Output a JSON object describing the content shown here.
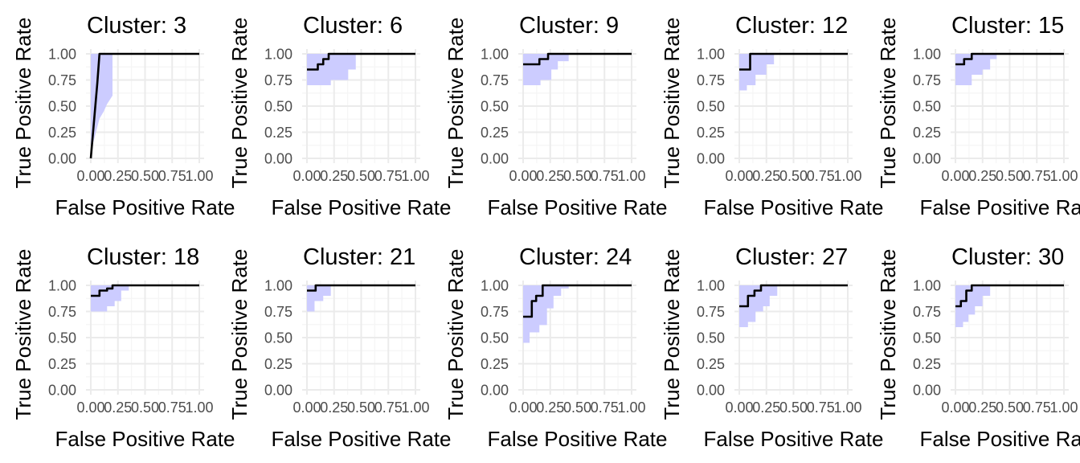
{
  "colors": {
    "band_fill": "#ccccff",
    "line": "#000000",
    "grid_major": "#ebebeb",
    "grid_minor": "#f5f5f5",
    "tick_text": "#4d4d4d"
  },
  "chart_data": [
    {
      "type": "line",
      "title": "Cluster:  3",
      "xlabel": "False Positive Rate",
      "ylabel": "True Positive Rate",
      "xlim": [
        0,
        1
      ],
      "ylim": [
        0,
        1
      ],
      "xticks": [
        "0.00",
        "0.25",
        "0.50",
        "0.75",
        "1.00"
      ],
      "yticks": [
        "0.00",
        "0.25",
        "0.50",
        "0.75",
        "1.00"
      ],
      "grid": true,
      "series": [
        {
          "x": [
            0,
            0.06,
            0.08,
            1
          ],
          "y": [
            0,
            0.72,
            1,
            1
          ]
        }
      ],
      "band": {
        "x": [
          0,
          0.02,
          0.06,
          0.08,
          0.12,
          0.15,
          0.2
        ],
        "lower": [
          0,
          0.14,
          0.3,
          0.38,
          0.45,
          0.52,
          0.6
        ],
        "upper": [
          1,
          1,
          1,
          1,
          1,
          1,
          1
        ]
      }
    },
    {
      "type": "line",
      "title": "Cluster:  6",
      "xlabel": "False Positive Rate",
      "ylabel": "True Positive Rate",
      "xlim": [
        0,
        1
      ],
      "ylim": [
        0,
        1
      ],
      "xticks": [
        "0.00",
        "0.25",
        "0.50",
        "0.75",
        "1.00"
      ],
      "yticks": [
        "0.00",
        "0.25",
        "0.50",
        "0.75",
        "1.00"
      ],
      "grid": true,
      "series": [
        {
          "x": [
            0,
            0.1,
            0.1,
            0.15,
            0.15,
            0.2,
            0.2,
            1
          ],
          "y": [
            0.85,
            0.85,
            0.9,
            0.9,
            0.95,
            0.95,
            1,
            1
          ]
        }
      ],
      "band": {
        "x": [
          0,
          0.22,
          0.22,
          0.38,
          0.38,
          0.45
        ],
        "lower": [
          0.7,
          0.7,
          0.75,
          0.75,
          0.85,
          0.85
        ],
        "upper": [
          1,
          1,
          1,
          1,
          1,
          1
        ]
      }
    },
    {
      "type": "line",
      "title": "Cluster:  9",
      "xlabel": "False Positive Rate",
      "ylabel": "True Positive Rate",
      "xlim": [
        0,
        1
      ],
      "ylim": [
        0,
        1
      ],
      "xticks": [
        "0.00",
        "0.25",
        "0.50",
        "0.75",
        "1.00"
      ],
      "yticks": [
        "0.00",
        "0.25",
        "0.50",
        "0.75",
        "1.00"
      ],
      "grid": true,
      "series": [
        {
          "x": [
            0,
            0.15,
            0.15,
            0.23,
            0.23,
            1
          ],
          "y": [
            0.9,
            0.9,
            0.95,
            0.95,
            1,
            1
          ]
        }
      ],
      "band": {
        "x": [
          0,
          0.16,
          0.16,
          0.26,
          0.26,
          0.32,
          0.32,
          0.42
        ],
        "lower": [
          0.7,
          0.7,
          0.75,
          0.75,
          0.85,
          0.85,
          0.93,
          0.93
        ],
        "upper": [
          1,
          1,
          1,
          1,
          1,
          1,
          1,
          1
        ]
      }
    },
    {
      "type": "line",
      "title": "Cluster:  12",
      "xlabel": "False Positive Rate",
      "ylabel": "True Positive Rate",
      "xlim": [
        0,
        1
      ],
      "ylim": [
        0,
        1
      ],
      "xticks": [
        "0.00",
        "0.25",
        "0.50",
        "0.75",
        "1.00"
      ],
      "yticks": [
        "0.00",
        "0.25",
        "0.50",
        "0.75",
        "1.00"
      ],
      "grid": true,
      "series": [
        {
          "x": [
            0,
            0.1,
            0.1,
            1
          ],
          "y": [
            0.85,
            0.85,
            1,
            1
          ]
        }
      ],
      "band": {
        "x": [
          0,
          0.07,
          0.07,
          0.15,
          0.15,
          0.25,
          0.25,
          0.32
        ],
        "lower": [
          0.65,
          0.65,
          0.7,
          0.7,
          0.8,
          0.8,
          0.9,
          0.9
        ],
        "upper": [
          1,
          1,
          1,
          1,
          1,
          1,
          1,
          1
        ]
      }
    },
    {
      "type": "line",
      "title": "Cluster:  15",
      "xlabel": "False Positive Rate",
      "ylabel": "True Positive Rate",
      "xlim": [
        0,
        1
      ],
      "ylim": [
        0,
        1
      ],
      "xticks": [
        "0.00",
        "0.25",
        "0.50",
        "0.75",
        "1.00"
      ],
      "yticks": [
        "0.00",
        "0.25",
        "0.50",
        "0.75",
        "1.00"
      ],
      "grid": true,
      "series": [
        {
          "x": [
            0,
            0.08,
            0.08,
            0.15,
            0.15,
            1
          ],
          "y": [
            0.9,
            0.9,
            0.95,
            0.95,
            1,
            1
          ]
        }
      ],
      "band": {
        "x": [
          0,
          0.15,
          0.15,
          0.25,
          0.25,
          0.32,
          0.32,
          0.38
        ],
        "lower": [
          0.7,
          0.7,
          0.8,
          0.8,
          0.85,
          0.85,
          0.95,
          0.95
        ],
        "upper": [
          1,
          1,
          1,
          1,
          1,
          1,
          1,
          1
        ]
      }
    },
    {
      "type": "line",
      "title": "Cluster:  18",
      "xlabel": "False Positive Rate",
      "ylabel": "True Positive Rate",
      "xlim": [
        0,
        1
      ],
      "ylim": [
        0,
        1
      ],
      "xticks": [
        "0.00",
        "0.25",
        "0.50",
        "0.75",
        "1.00"
      ],
      "yticks": [
        "0.00",
        "0.25",
        "0.50",
        "0.75",
        "1.00"
      ],
      "grid": true,
      "series": [
        {
          "x": [
            0,
            0.08,
            0.08,
            0.15,
            0.15,
            0.2,
            0.2,
            1
          ],
          "y": [
            0.9,
            0.9,
            0.95,
            0.95,
            0.97,
            0.97,
            1,
            1
          ]
        }
      ],
      "band": {
        "x": [
          0,
          0.15,
          0.15,
          0.22,
          0.22,
          0.28,
          0.28,
          0.35
        ],
        "lower": [
          0.75,
          0.75,
          0.8,
          0.8,
          0.85,
          0.85,
          0.95,
          0.95
        ],
        "upper": [
          1,
          1,
          1,
          1,
          1,
          1,
          1,
          1
        ]
      }
    },
    {
      "type": "line",
      "title": "Cluster:  21",
      "xlabel": "False Positive Rate",
      "ylabel": "True Positive Rate",
      "xlim": [
        0,
        1
      ],
      "ylim": [
        0,
        1
      ],
      "xticks": [
        "0.00",
        "0.25",
        "0.50",
        "0.75",
        "1.00"
      ],
      "yticks": [
        "0.00",
        "0.25",
        "0.50",
        "0.75",
        "1.00"
      ],
      "grid": true,
      "series": [
        {
          "x": [
            0,
            0.08,
            0.08,
            1
          ],
          "y": [
            0.95,
            0.95,
            1,
            1
          ]
        }
      ],
      "band": {
        "x": [
          0,
          0.07,
          0.07,
          0.15,
          0.15,
          0.22
        ],
        "lower": [
          0.75,
          0.75,
          0.85,
          0.85,
          0.9,
          0.9
        ],
        "upper": [
          1,
          1,
          1,
          1,
          1,
          1
        ]
      }
    },
    {
      "type": "line",
      "title": "Cluster:  24",
      "xlabel": "False Positive Rate",
      "ylabel": "True Positive Rate",
      "xlim": [
        0,
        1
      ],
      "ylim": [
        0,
        1
      ],
      "xticks": [
        "0.00",
        "0.25",
        "0.50",
        "0.75",
        "1.00"
      ],
      "yticks": [
        "0.00",
        "0.25",
        "0.50",
        "0.75",
        "1.00"
      ],
      "grid": true,
      "series": [
        {
          "x": [
            0,
            0.08,
            0.08,
            0.12,
            0.12,
            0.18,
            0.18,
            1
          ],
          "y": [
            0.7,
            0.7,
            0.85,
            0.85,
            0.9,
            0.9,
            1,
            1
          ]
        }
      ],
      "band": {
        "x": [
          0,
          0.06,
          0.06,
          0.15,
          0.15,
          0.22,
          0.22,
          0.28,
          0.28,
          0.35,
          0.35,
          0.42
        ],
        "lower": [
          0.45,
          0.45,
          0.55,
          0.55,
          0.62,
          0.62,
          0.78,
          0.78,
          0.9,
          0.9,
          0.97,
          0.97
        ],
        "upper": [
          1,
          1,
          1,
          1,
          1,
          1,
          1,
          1,
          1,
          1,
          1,
          1
        ]
      }
    },
    {
      "type": "line",
      "title": "Cluster:  27",
      "xlabel": "False Positive Rate",
      "ylabel": "True Positive Rate",
      "xlim": [
        0,
        1
      ],
      "ylim": [
        0,
        1
      ],
      "xticks": [
        "0.00",
        "0.25",
        "0.50",
        "0.75",
        "1.00"
      ],
      "yticks": [
        "0.00",
        "0.25",
        "0.50",
        "0.75",
        "1.00"
      ],
      "grid": true,
      "series": [
        {
          "x": [
            0,
            0.08,
            0.08,
            0.14,
            0.14,
            0.2,
            0.2,
            1
          ],
          "y": [
            0.8,
            0.8,
            0.9,
            0.9,
            0.95,
            0.95,
            1,
            1
          ]
        }
      ],
      "band": {
        "x": [
          0,
          0.08,
          0.08,
          0.15,
          0.15,
          0.22,
          0.22,
          0.28,
          0.28,
          0.35
        ],
        "lower": [
          0.6,
          0.6,
          0.65,
          0.65,
          0.75,
          0.75,
          0.8,
          0.8,
          0.9,
          0.9
        ],
        "upper": [
          1,
          1,
          1,
          1,
          1,
          1,
          1,
          1,
          1,
          1
        ]
      }
    },
    {
      "type": "line",
      "title": "Cluster:  30",
      "xlabel": "False Positive Rate",
      "ylabel": "True Positive Rate",
      "xlim": [
        0,
        1
      ],
      "ylim": [
        0,
        1
      ],
      "xticks": [
        "0.00",
        "0.25",
        "0.50",
        "0.75",
        "1.00"
      ],
      "yticks": [
        "0.00",
        "0.25",
        "0.50",
        "0.75",
        "1.00"
      ],
      "grid": true,
      "series": [
        {
          "x": [
            0,
            0.05,
            0.05,
            0.1,
            0.1,
            0.15,
            0.15,
            1
          ],
          "y": [
            0.8,
            0.8,
            0.85,
            0.85,
            0.95,
            0.95,
            1,
            1
          ]
        }
      ],
      "band": {
        "x": [
          0,
          0.07,
          0.07,
          0.12,
          0.12,
          0.18,
          0.18,
          0.25,
          0.25,
          0.32
        ],
        "lower": [
          0.6,
          0.6,
          0.65,
          0.65,
          0.72,
          0.72,
          0.8,
          0.8,
          0.9,
          0.9
        ],
        "upper": [
          1,
          1,
          1,
          1,
          1,
          1,
          1,
          1,
          1,
          1
        ]
      }
    }
  ]
}
